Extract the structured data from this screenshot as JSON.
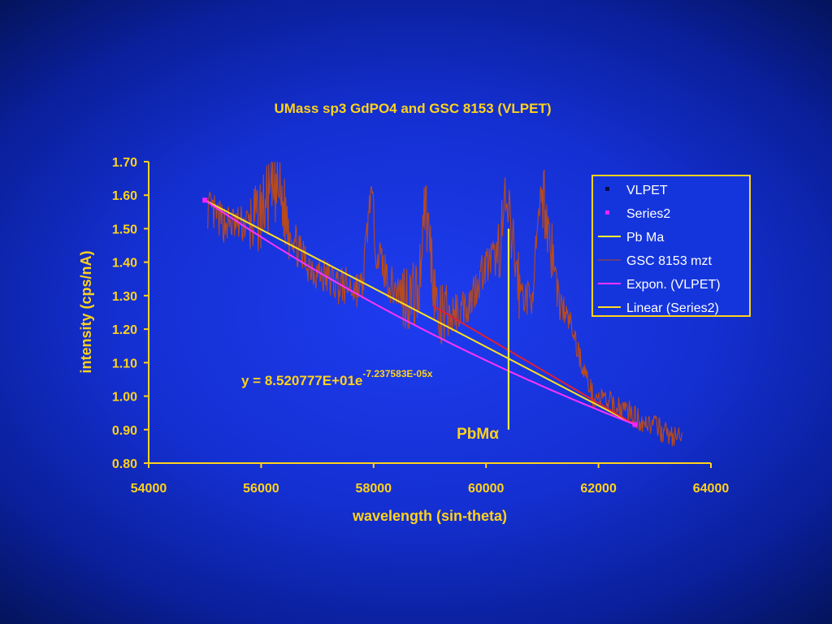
{
  "chart_data": {
    "type": "line",
    "title": "UMass sp3 GdPO4 and GSC 8153 (VLPET)",
    "xlabel": "wavelength (sin-theta)",
    "ylabel": "intensity (cps/nA)",
    "xlim": [
      54000,
      64000
    ],
    "ylim": [
      0.8,
      1.7
    ],
    "x_ticks": [
      "54000",
      "56000",
      "58000",
      "60000",
      "62000",
      "64000"
    ],
    "y_ticks": [
      "0.80",
      "0.90",
      "1.00",
      "1.10",
      "1.20",
      "1.30",
      "1.40",
      "1.50",
      "1.60",
      "1.70"
    ],
    "grid": false,
    "legend_position": "top-right",
    "series": [
      {
        "name": "VLPET",
        "kind": "marker",
        "color": "#0a0a4a",
        "x": [
          55000,
          62650
        ],
        "y": [
          1.585,
          0.915
        ]
      },
      {
        "name": "Series2",
        "kind": "marker",
        "color": "#ff20ff",
        "x": [
          55000,
          62650
        ],
        "y": [
          1.585,
          0.915
        ]
      },
      {
        "name": "Pb Ma",
        "kind": "vline",
        "color": "#ffff33",
        "x": [
          60400,
          60400
        ],
        "y": [
          0.9,
          1.5
        ]
      },
      {
        "name": "GSC 8153 mzt",
        "kind": "noisy-line",
        "color": "#b84a1c",
        "x": [
          55050,
          55300,
          55600,
          55900,
          56100,
          56300,
          56450,
          56700,
          57000,
          57400,
          57800,
          57950,
          58050,
          58300,
          58600,
          58800,
          58900,
          59000,
          59150,
          59400,
          59700,
          59950,
          60200,
          60350,
          60450,
          60600,
          60800,
          61000,
          61150,
          61300,
          61500,
          61700,
          61900,
          62100,
          62300,
          62500,
          62700,
          62900,
          63100,
          63300,
          63500
        ],
        "y": [
          1.56,
          1.52,
          1.51,
          1.52,
          1.58,
          1.62,
          1.53,
          1.42,
          1.37,
          1.33,
          1.32,
          1.62,
          1.44,
          1.33,
          1.3,
          1.3,
          1.6,
          1.46,
          1.22,
          1.24,
          1.28,
          1.38,
          1.42,
          1.56,
          1.48,
          1.32,
          1.28,
          1.62,
          1.46,
          1.28,
          1.22,
          1.1,
          1.0,
          0.99,
          0.97,
          0.96,
          0.93,
          0.92,
          0.9,
          0.88,
          0.87
        ]
      },
      {
        "name": "Expon. (VLPET)",
        "kind": "line",
        "color": "#ff33ff",
        "x": [
          55000,
          62650
        ],
        "y": [
          1.585,
          0.915
        ]
      },
      {
        "name": "Linear (Series2)",
        "kind": "line",
        "color": "#ffe020",
        "x": [
          55000,
          62650
        ],
        "y": [
          1.585,
          0.915
        ]
      },
      {
        "name": "",
        "kind": "line",
        "color": "#e02030",
        "x": [
          59050,
          62650
        ],
        "y": [
          1.27,
          0.915
        ]
      }
    ],
    "annotations": {
      "equation_main": "y = 8.520777E+01e",
      "equation_sup": "-7.237583E-05x",
      "marker_label": "PbMα"
    }
  },
  "colors": {
    "text": "#ffd21c",
    "axis": "#ffd21c",
    "legend_border": "#ffd21c",
    "legend_bg": "#1535dc"
  }
}
